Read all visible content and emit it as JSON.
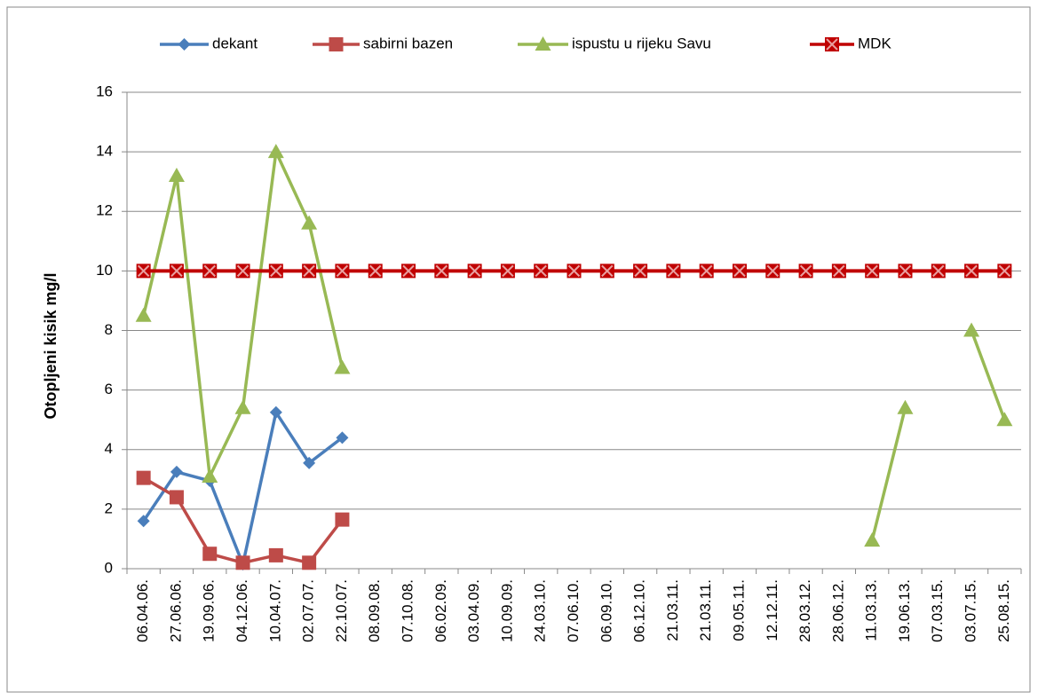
{
  "chart_data": {
    "type": "line",
    "y_label": "Otopljeni kisik    mg/l",
    "categories": [
      "06.04.06.",
      "27.06.06.",
      "19.09.06.",
      "04.12.06.",
      "10.04.07.",
      "02.07.07.",
      "22.10.07.",
      "08.09.08.",
      "07.10.08.",
      "06.02.09.",
      "03.04.09.",
      "10.09.09.",
      "24.03.10.",
      "07.06.10.",
      "06.09.10.",
      "06.12.10.",
      "21.03.11.",
      "21.03.11.",
      "09.05.11.",
      "12.12.11.",
      "28.03.12.",
      "28.06.12.",
      "11.03.13.",
      "19.06.13.",
      "07.03.15.",
      "03.07.15.",
      "25.08.15."
    ],
    "series": [
      {
        "name": "dekant",
        "color": "#4a7ebb",
        "marker": "diamond",
        "values": [
          1.6,
          3.25,
          2.95,
          0.15,
          5.25,
          3.55,
          4.4,
          null,
          null,
          null,
          null,
          null,
          null,
          null,
          null,
          null,
          null,
          null,
          null,
          null,
          null,
          null,
          null,
          null,
          null,
          null,
          null
        ]
      },
      {
        "name": "sabirni bazen",
        "color": "#be4b48",
        "marker": "square",
        "values": [
          3.05,
          2.4,
          0.5,
          0.2,
          0.45,
          0.2,
          1.65,
          null,
          null,
          null,
          null,
          null,
          null,
          null,
          null,
          null,
          null,
          null,
          null,
          null,
          null,
          null,
          null,
          null,
          null,
          null,
          null
        ]
      },
      {
        "name": "ispustu u rijeku Savu",
        "color": "#98b954",
        "marker": "triangle",
        "values": [
          8.5,
          13.2,
          3.1,
          5.4,
          14.0,
          11.6,
          6.75,
          null,
          null,
          null,
          null,
          null,
          null,
          null,
          null,
          null,
          null,
          null,
          null,
          null,
          null,
          null,
          0.95,
          5.4,
          null,
          8.0,
          5.0
        ]
      },
      {
        "name": "MDK",
        "color": "#c00000",
        "marker": "xsquare",
        "values": [
          10,
          10,
          10,
          10,
          10,
          10,
          10,
          10,
          10,
          10,
          10,
          10,
          10,
          10,
          10,
          10,
          10,
          10,
          10,
          10,
          10,
          10,
          10,
          10,
          10,
          10,
          10
        ]
      }
    ],
    "ylim": [
      0,
      16
    ],
    "yticks": [
      0,
      2,
      4,
      6,
      8,
      10,
      12,
      14,
      16
    ],
    "grid": true,
    "legend": "top"
  }
}
